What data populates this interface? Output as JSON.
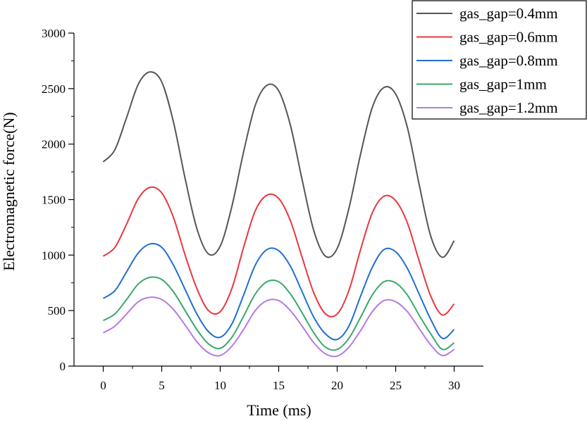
{
  "chart_data": {
    "type": "line",
    "title": "",
    "xlabel": "Time (ms)",
    "ylabel": "Electromagnetic force(N)",
    "xlim": [
      -2.5,
      32.5
    ],
    "ylim": [
      0,
      3000
    ],
    "x_ticks": [
      0,
      5,
      10,
      15,
      20,
      25,
      30
    ],
    "y_ticks": [
      0,
      500,
      1000,
      1500,
      2000,
      2500,
      3000
    ],
    "x_tick_labels": [
      "0",
      "5",
      "10",
      "15",
      "20",
      "25",
      "30"
    ],
    "y_tick_labels": [
      "0",
      "500",
      "1000",
      "1500",
      "2000",
      "2500",
      "3000"
    ],
    "grid": false,
    "legend_position": "top-right",
    "x": [
      0,
      1,
      2,
      3,
      4,
      5,
      6,
      7,
      8,
      9,
      10,
      11,
      12,
      13,
      14,
      15,
      16,
      17,
      18,
      19,
      20,
      21,
      22,
      23,
      24,
      25,
      26,
      27,
      28,
      29,
      30
    ],
    "series": [
      {
        "name": "gas_gap=0.4mm",
        "color": "#555555",
        "values": [
          1840,
          1950,
          2240,
          2540,
          2650,
          2560,
          2200,
          1690,
          1240,
          1010,
          1080,
          1440,
          1930,
          2350,
          2530,
          2480,
          2170,
          1680,
          1220,
          990,
          1060,
          1420,
          1910,
          2330,
          2510,
          2450,
          2150,
          1640,
          1170,
          980,
          1130
        ]
      },
      {
        "name": "gas_gap=0.6mm",
        "color": "#e8383d",
        "values": [
          990,
          1070,
          1280,
          1510,
          1610,
          1560,
          1340,
          1000,
          700,
          500,
          490,
          700,
          1070,
          1400,
          1540,
          1510,
          1310,
          980,
          660,
          470,
          470,
          680,
          1050,
          1380,
          1530,
          1490,
          1290,
          950,
          630,
          460,
          560
        ]
      },
      {
        "name": "gas_gap=0.8mm",
        "color": "#1f6fd1",
        "values": [
          610,
          680,
          850,
          1020,
          1100,
          1070,
          910,
          690,
          470,
          310,
          260,
          380,
          640,
          910,
          1050,
          1040,
          900,
          670,
          440,
          290,
          240,
          360,
          630,
          890,
          1050,
          1030,
          880,
          650,
          420,
          250,
          330
        ]
      },
      {
        "name": "gas_gap=1mm",
        "color": "#3aa86b",
        "values": [
          410,
          470,
          600,
          740,
          800,
          780,
          670,
          500,
          330,
          200,
          160,
          260,
          450,
          650,
          760,
          760,
          650,
          480,
          300,
          170,
          150,
          250,
          440,
          640,
          760,
          750,
          640,
          460,
          290,
          150,
          210
        ]
      },
      {
        "name": "gas_gap=1.2mm",
        "color": "#b57ae3",
        "values": [
          300,
          360,
          470,
          580,
          620,
          600,
          510,
          370,
          220,
          120,
          95,
          180,
          330,
          500,
          590,
          590,
          500,
          360,
          210,
          110,
          90,
          170,
          320,
          490,
          590,
          580,
          490,
          340,
          190,
          95,
          150
        ]
      }
    ]
  }
}
